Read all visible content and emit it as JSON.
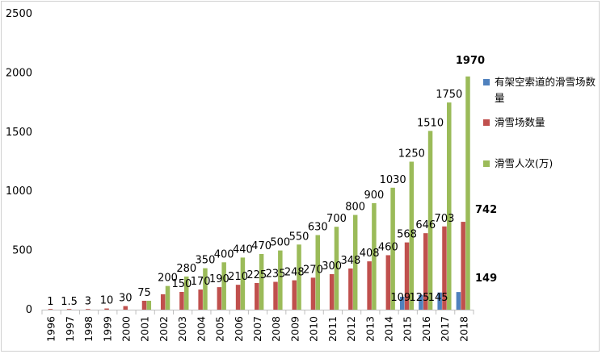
{
  "chart_data": {
    "type": "bar",
    "title": "",
    "xlabel": "",
    "ylabel": "",
    "ylim": [
      0,
      2500
    ],
    "yticks": [
      "0",
      "500",
      "1000",
      "1500",
      "2000",
      "2500"
    ],
    "grid": false,
    "legend_position": "right",
    "categories": [
      "1996",
      "1997",
      "1998",
      "1999",
      "2000",
      "2001",
      "2002",
      "2003",
      "2004",
      "2005",
      "2006",
      "2007",
      "2008",
      "2009",
      "2010",
      "2011",
      "2012",
      "2013",
      "2014",
      "2015",
      "2016",
      "2017",
      "2018"
    ],
    "series": [
      {
        "name": "有架空索道的滑雪场数量",
        "color": "#4f81bd",
        "values": [
          null,
          null,
          null,
          null,
          null,
          null,
          null,
          null,
          null,
          null,
          null,
          null,
          null,
          null,
          null,
          null,
          null,
          null,
          null,
          109,
          125,
          145,
          149
        ],
        "labels": [
          null,
          null,
          null,
          null,
          null,
          null,
          null,
          null,
          null,
          null,
          null,
          null,
          null,
          null,
          null,
          null,
          null,
          null,
          null,
          "109",
          "125",
          "145",
          "149"
        ]
      },
      {
        "name": "滑雪场数量",
        "color": "#c0504d",
        "values": [
          1,
          1.5,
          3,
          10,
          30,
          75,
          130,
          150,
          170,
          190,
          210,
          225,
          235,
          248,
          270,
          300,
          348,
          408,
          460,
          568,
          646,
          703,
          742
        ],
        "labels": [
          "1",
          "1.5",
          "3",
          "10",
          "30",
          "75",
          null,
          "150",
          "170",
          "190",
          "210",
          "225",
          "235",
          "248",
          "270",
          "300",
          "348",
          "408",
          "460",
          "568",
          "646",
          "703",
          "742"
        ]
      },
      {
        "name": "滑雪人次(万)",
        "color": "#9bbb59",
        "values": [
          null,
          null,
          null,
          null,
          null,
          75,
          200,
          280,
          350,
          400,
          440,
          470,
          500,
          550,
          630,
          700,
          800,
          900,
          1030,
          1250,
          1510,
          1750,
          1970
        ],
        "labels": [
          null,
          null,
          null,
          null,
          null,
          null,
          "200",
          "280",
          "350",
          "400",
          "440",
          "470",
          "500",
          "550",
          "630",
          "700",
          "800",
          "900",
          "1030",
          "1250",
          "1510",
          "1750",
          "1970"
        ]
      }
    ]
  }
}
